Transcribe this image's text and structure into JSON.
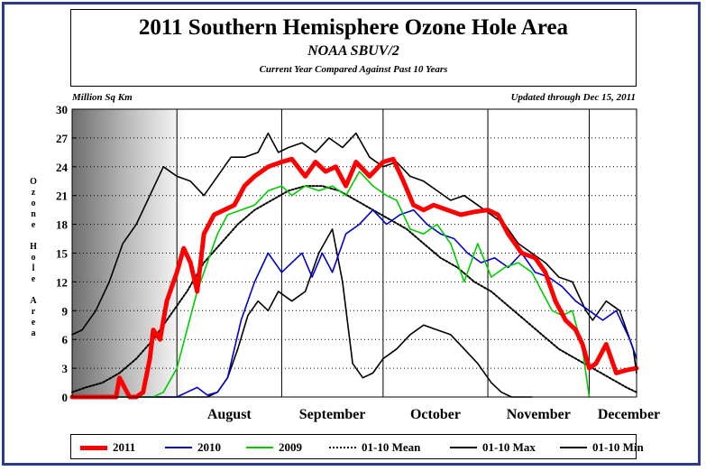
{
  "header": {
    "title": "2011 Southern Hemisphere Ozone Hole Area",
    "subtitle": "NOAA SBUV/2",
    "subsubtitle": "Current Year Compared Against Past 10 Years",
    "units": "Million Sq Km",
    "updated": "Updated through Dec 15, 2011"
  },
  "ylabel_chars": [
    "O",
    "z",
    "o",
    "n",
    "e",
    " ",
    "H",
    "o",
    "l",
    "e",
    " ",
    "A",
    "r",
    "e",
    "a"
  ],
  "colors": {
    "frame": "#2a3a8c",
    "s2011": "#ff0000",
    "s2010": "#0000cc",
    "s2009": "#00cc00",
    "mean": "#000000",
    "max": "#000000",
    "min": "#000000"
  },
  "chart_data": {
    "type": "line",
    "title": "2011 Southern Hemisphere Ozone Hole Area",
    "ylabel": "Ozone Hole Area",
    "yunits": "Million Sq Km",
    "ylim": [
      0,
      30
    ],
    "yticks": [
      0,
      3,
      6,
      9,
      12,
      15,
      18,
      21,
      24,
      27,
      30
    ],
    "xlim": [
      "Jul 1",
      "Dec 15"
    ],
    "months": [
      {
        "label": "August",
        "start": "Aug 1"
      },
      {
        "label": "September",
        "start": "Sep 1"
      },
      {
        "label": "October",
        "start": "Oct 1"
      },
      {
        "label": "November",
        "start": "Nov 1"
      },
      {
        "label": "December",
        "start": "Dec 1"
      }
    ],
    "grid": true,
    "polar_night_shading": true,
    "legend_position": "bottom",
    "series": [
      {
        "name": "2011",
        "key": "s2011",
        "style": "solid-thick",
        "x": [
          "Jul 1",
          "Jul 10",
          "Jul 14",
          "Jul 15",
          "Jul 18",
          "Jul 20",
          "Jul 22",
          "Jul 24",
          "Jul 25",
          "Jul 27",
          "Jul 29",
          "Aug 1",
          "Aug 3",
          "Aug 5",
          "Aug 7",
          "Aug 9",
          "Aug 12",
          "Aug 15",
          "Aug 18",
          "Aug 21",
          "Aug 24",
          "Aug 28",
          "Sep 1",
          "Sep 4",
          "Sep 8",
          "Sep 11",
          "Sep 14",
          "Sep 17",
          "Sep 20",
          "Sep 23",
          "Sep 27",
          "Oct 1",
          "Oct 4",
          "Oct 7",
          "Oct 10",
          "Oct 13",
          "Oct 16",
          "Oct 20",
          "Oct 24",
          "Oct 28",
          "Nov 1",
          "Nov 4",
          "Nov 7",
          "Nov 11",
          "Nov 15",
          "Nov 18",
          "Nov 21",
          "Nov 24",
          "Nov 27",
          "Nov 29",
          "Dec 1",
          "Dec 3",
          "Dec 6",
          "Dec 9",
          "Dec 12",
          "Dec 15"
        ],
        "y": [
          0,
          0,
          0,
          2,
          0,
          0,
          0.5,
          4,
          7,
          6,
          10,
          13,
          15.5,
          14,
          11,
          17,
          19,
          19.5,
          20,
          22,
          23,
          24,
          24.5,
          24.8,
          23,
          24.5,
          23.5,
          24,
          22,
          24.5,
          23,
          24.5,
          24.8,
          22.5,
          20,
          19.5,
          20,
          19.5,
          19,
          19.3,
          19.5,
          19,
          17,
          15,
          14.5,
          13,
          10,
          8,
          7,
          5.5,
          3,
          3.5,
          5.5,
          2.5,
          2.8,
          3
        ]
      },
      {
        "name": "2010",
        "key": "s2010",
        "style": "solid",
        "x": [
          "Jul 1",
          "Jul 22",
          "Jul 24",
          "Jul 26",
          "Jul 29",
          "Aug 1",
          "Aug 4",
          "Aug 7",
          "Aug 10",
          "Aug 13",
          "Aug 16",
          "Aug 20",
          "Aug 24",
          "Aug 28",
          "Sep 1",
          "Sep 4",
          "Sep 7",
          "Sep 10",
          "Sep 13",
          "Sep 16",
          "Sep 20",
          "Sep 24",
          "Sep 28",
          "Oct 2",
          "Oct 6",
          "Oct 10",
          "Oct 14",
          "Oct 18",
          "Oct 22",
          "Oct 26",
          "Oct 30",
          "Nov 3",
          "Nov 7",
          "Nov 11",
          "Nov 15",
          "Nov 19",
          "Nov 23",
          "Nov 27",
          "Dec 1",
          "Dec 5",
          "Dec 9",
          "Dec 13",
          "Dec 15"
        ],
        "y": [
          0,
          0,
          0,
          0,
          0,
          0,
          0.5,
          1,
          0.2,
          0.5,
          2,
          8,
          12,
          15,
          13,
          14,
          15,
          12.5,
          15,
          13,
          17,
          18,
          19.5,
          18,
          19,
          19.5,
          18,
          17,
          16.5,
          15,
          14,
          14.5,
          13.5,
          15,
          13,
          12.5,
          11.5,
          10,
          9,
          8,
          9,
          6,
          4
        ]
      },
      {
        "name": "2009",
        "key": "s2009",
        "style": "solid",
        "x": [
          "Jul 1",
          "Jul 20",
          "Jul 22",
          "Jul 25",
          "Jul 28",
          "Aug 1",
          "Aug 4",
          "Aug 7",
          "Aug 10",
          "Aug 13",
          "Aug 16",
          "Aug 20",
          "Aug 24",
          "Aug 28",
          "Sep 1",
          "Sep 4",
          "Sep 8",
          "Sep 12",
          "Sep 16",
          "Sep 20",
          "Sep 24",
          "Sep 28",
          "Oct 2",
          "Oct 5",
          "Oct 9",
          "Oct 13",
          "Oct 17",
          "Oct 21",
          "Oct 25",
          "Oct 29",
          "Nov 2",
          "Nov 6",
          "Nov 10",
          "Nov 14",
          "Nov 17",
          "Nov 20",
          "Nov 23",
          "Nov 26",
          "Nov 29",
          "Dec 1"
        ],
        "y": [
          0,
          0,
          0,
          0,
          0.5,
          3,
          7,
          11,
          14,
          17,
          19,
          19.5,
          20,
          21.5,
          22,
          21,
          22,
          21.5,
          22,
          21,
          23.5,
          22,
          21,
          20.5,
          17.5,
          17,
          18,
          16,
          12,
          16,
          12.5,
          13.5,
          14,
          13,
          11,
          9,
          8.5,
          9,
          5,
          0
        ]
      },
      {
        "name": "01-10 Mean",
        "key": "mean",
        "style": "dotted",
        "x": [
          "Jul 1",
          "Jul 5",
          "Jul 10",
          "Jul 15",
          "Jul 20",
          "Jul 25",
          "Jul 30",
          "Aug 4",
          "Aug 9",
          "Aug 14",
          "Aug 19",
          "Aug 24",
          "Aug 29",
          "Sep 3",
          "Sep 8",
          "Sep 13",
          "Sep 18",
          "Sep 23",
          "Sep 28",
          "Oct 3",
          "Oct 8",
          "Oct 13",
          "Oct 18",
          "Oct 23",
          "Oct 28",
          "Nov 2",
          "Nov 7",
          "Nov 12",
          "Nov 17",
          "Nov 22",
          "Nov 27",
          "Dec 2",
          "Dec 7",
          "Dec 12",
          "Dec 15"
        ],
        "y": [
          0.5,
          1,
          1.5,
          2.5,
          4,
          6,
          8.5,
          11,
          14,
          16,
          18,
          19.5,
          20.5,
          21.5,
          22,
          22,
          21.5,
          20.5,
          19.5,
          18.5,
          17.5,
          16,
          14.5,
          13.5,
          12,
          11,
          9.5,
          8,
          6.5,
          5,
          4,
          3,
          2,
          1,
          0.5
        ]
      },
      {
        "name": "01-10 Max",
        "key": "max",
        "style": "solid",
        "x": [
          "Jul 1",
          "Jul 4",
          "Jul 8",
          "Jul 12",
          "Jul 16",
          "Jul 20",
          "Jul 24",
          "Jul 28",
          "Aug 1",
          "Aug 5",
          "Aug 9",
          "Aug 13",
          "Aug 17",
          "Aug 21",
          "Aug 25",
          "Aug 28",
          "Aug 31",
          "Sep 3",
          "Sep 7",
          "Sep 11",
          "Sep 15",
          "Sep 19",
          "Sep 23",
          "Sep 27",
          "Oct 1",
          "Oct 5",
          "Oct 9",
          "Oct 13",
          "Oct 17",
          "Oct 21",
          "Oct 25",
          "Oct 29",
          "Nov 2",
          "Nov 6",
          "Nov 10",
          "Nov 14",
          "Nov 18",
          "Nov 22",
          "Nov 26",
          "Nov 30",
          "Dec 2",
          "Dec 6",
          "Dec 10",
          "Dec 14",
          "Dec 15"
        ],
        "y": [
          6.5,
          7,
          9,
          12,
          16,
          18,
          21,
          24,
          23,
          22.5,
          21,
          23,
          25,
          25,
          25.5,
          27.5,
          25.5,
          26,
          26.5,
          25.5,
          27,
          26,
          27.5,
          25,
          24,
          24.5,
          23,
          22.5,
          21.5,
          20.5,
          21,
          20,
          19,
          18,
          16,
          15,
          14,
          12.5,
          12,
          9,
          8,
          10,
          9,
          5,
          2.5
        ]
      },
      {
        "name": "01-10 Min",
        "key": "min",
        "style": "solid",
        "x": [
          "Jul 1",
          "Aug 10",
          "Aug 13",
          "Aug 16",
          "Aug 19",
          "Aug 22",
          "Aug 25",
          "Aug 28",
          "Aug 31",
          "Sep 4",
          "Sep 8",
          "Sep 12",
          "Sep 16",
          "Sep 19",
          "Sep 22",
          "Sep 25",
          "Sep 28",
          "Oct 1",
          "Oct 5",
          "Oct 9",
          "Oct 13",
          "Oct 17",
          "Oct 21",
          "Oct 25",
          "Oct 29",
          "Nov 2",
          "Nov 5",
          "Nov 8",
          "Nov 11",
          "Nov 14"
        ],
        "y": [
          0,
          0,
          0.5,
          2,
          5,
          8.5,
          10,
          9,
          11,
          10,
          11,
          15,
          17.5,
          12,
          3.5,
          2,
          2.5,
          4,
          5,
          6.5,
          7.5,
          7,
          6.5,
          5,
          3.5,
          1.5,
          0.5,
          0,
          0,
          0
        ]
      }
    ]
  },
  "legend": [
    {
      "label": "2011",
      "key": "s2011",
      "style": "solid-thick"
    },
    {
      "label": "2010",
      "key": "s2010",
      "style": "solid"
    },
    {
      "label": "2009",
      "key": "s2009",
      "style": "solid"
    },
    {
      "label": "01-10 Mean",
      "key": "mean",
      "style": "dotted"
    },
    {
      "label": "01-10 Max",
      "key": "max",
      "style": "solid"
    },
    {
      "label": "01-10 Min",
      "key": "min",
      "style": "solid"
    }
  ]
}
